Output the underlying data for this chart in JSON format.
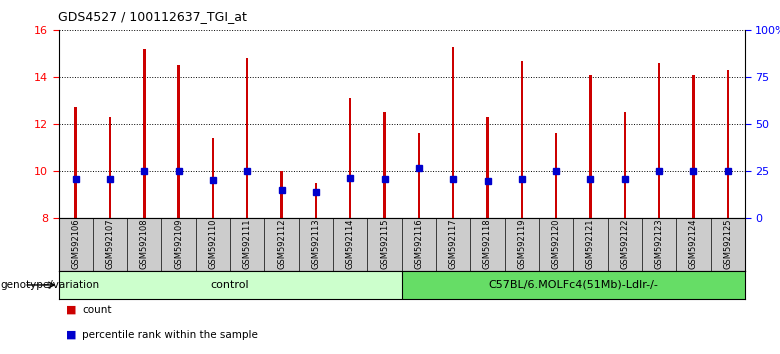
{
  "title": "GDS4527 / 100112637_TGI_at",
  "samples": [
    "GSM592106",
    "GSM592107",
    "GSM592108",
    "GSM592109",
    "GSM592110",
    "GSM592111",
    "GSM592112",
    "GSM592113",
    "GSM592114",
    "GSM592115",
    "GSM592116",
    "GSM592117",
    "GSM592118",
    "GSM592119",
    "GSM592120",
    "GSM592121",
    "GSM592122",
    "GSM592123",
    "GSM592124",
    "GSM592125"
  ],
  "bar_heights": [
    12.7,
    12.3,
    15.2,
    14.5,
    11.4,
    14.8,
    10.0,
    9.5,
    13.1,
    12.5,
    11.6,
    15.3,
    12.3,
    14.7,
    11.6,
    14.1,
    12.5,
    14.6,
    14.1,
    14.3
  ],
  "blue_markers": [
    9.65,
    9.65,
    10.0,
    10.0,
    9.6,
    10.0,
    9.2,
    9.1,
    9.7,
    9.65,
    10.1,
    9.65,
    9.55,
    9.65,
    10.0,
    9.65,
    9.65,
    10.0,
    10.0,
    10.0
  ],
  "bar_color": "#cc0000",
  "marker_color": "#0000cc",
  "ylim_left": [
    8,
    16
  ],
  "ylim_right": [
    0,
    100
  ],
  "yticks_left": [
    8,
    10,
    12,
    14,
    16
  ],
  "yticks_right": [
    0,
    25,
    50,
    75,
    100
  ],
  "ytick_labels_right": [
    "0",
    "25",
    "50",
    "75",
    "100%"
  ],
  "groups": [
    {
      "label": "control",
      "start": 0,
      "end": 10,
      "color": "#ccffcc"
    },
    {
      "label": "C57BL/6.MOLFc4(51Mb)-Ldlr-/-",
      "start": 10,
      "end": 20,
      "color": "#66dd66"
    }
  ],
  "group_row_label": "genotype/variation",
  "legend_items": [
    {
      "label": "count",
      "color": "#cc0000"
    },
    {
      "label": "percentile rank within the sample",
      "color": "#0000cc"
    }
  ],
  "background_color": "#ffffff",
  "plot_bg_color": "#ffffff",
  "tick_label_area_color": "#cccccc",
  "grid_color": "#000000",
  "bar_width": 0.07
}
